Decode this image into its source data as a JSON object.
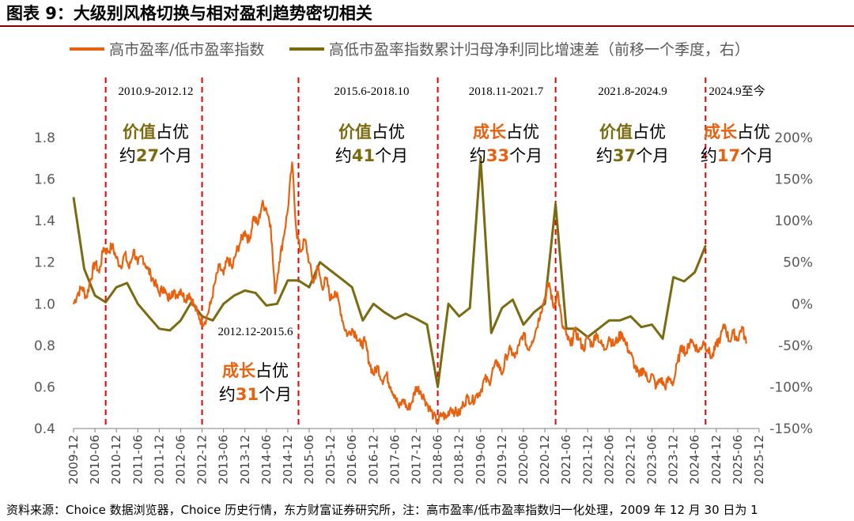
{
  "figure": {
    "title": "图表 9：大级别风格切换与相对盈利趋势密切相关",
    "source": "资料来源：Choice 数据浏览器，Choice 历史行情，东方财富证券研究所，注：高市盈率/低市盈率指数归一化处理，2009 年 12 月 30 日为 1"
  },
  "colors": {
    "orange": "#E8610F",
    "olive": "#7A6A10",
    "red_dash": "#E00000",
    "grid": "#BFBFBF"
  },
  "chart_data": {
    "type": "line",
    "legend": [
      {
        "name": "高市盈率/低市盈率指数",
        "color": "#E8610F"
      },
      {
        "name": "高低市盈率指数累计归母净利同比增速差（前移一个季度，右）",
        "color": "#7A6A10"
      }
    ],
    "x_tick_labels": [
      "2009-12",
      "2010-06",
      "2010-12",
      "2011-06",
      "2011-12",
      "2012-06",
      "2012-12",
      "2013-06",
      "2013-12",
      "2014-06",
      "2014-12",
      "2015-06",
      "2015-12",
      "2016-06",
      "2016-12",
      "2017-06",
      "2017-12",
      "2018-06",
      "2018-12",
      "2019-06",
      "2019-12",
      "2020-06",
      "2020-12",
      "2021-06",
      "2021-12",
      "2022-06",
      "2022-12",
      "2023-06",
      "2023-12",
      "2024-06",
      "2024-12",
      "2025-06",
      "2025-12"
    ],
    "y_left": {
      "min": 0.4,
      "max": 1.8,
      "ticks": [
        "0.4",
        "0.6",
        "0.8",
        "1.0",
        "1.2",
        "1.4",
        "1.6",
        "1.8"
      ]
    },
    "y_right": {
      "min": -150,
      "max": 200,
      "unit": "%",
      "ticks": [
        "-150%",
        "-100%",
        "-50%",
        "0%",
        "50%",
        "100%",
        "150%",
        "200%"
      ]
    },
    "series": [
      {
        "name": "高市盈率/低市盈率指数",
        "axis": "left",
        "points": [
          [
            0.0,
            1.0
          ],
          [
            0.2,
            1.05
          ],
          [
            0.4,
            1.08
          ],
          [
            0.6,
            1.03
          ],
          [
            0.8,
            1.12
          ],
          [
            1.0,
            1.2
          ],
          [
            1.2,
            1.15
          ],
          [
            1.4,
            1.27
          ],
          [
            1.6,
            1.25
          ],
          [
            1.8,
            1.28
          ],
          [
            2.0,
            1.22
          ],
          [
            2.2,
            1.18
          ],
          [
            2.4,
            1.24
          ],
          [
            2.6,
            1.17
          ],
          [
            2.8,
            1.26
          ],
          [
            3.0,
            1.19
          ],
          [
            3.2,
            1.23
          ],
          [
            3.4,
            1.18
          ],
          [
            3.6,
            1.14
          ],
          [
            3.8,
            1.1
          ],
          [
            4.0,
            1.05
          ],
          [
            4.2,
            1.08
          ],
          [
            4.4,
            1.02
          ],
          [
            4.6,
            1.06
          ],
          [
            4.8,
            1.04
          ],
          [
            5.0,
            1.07
          ],
          [
            5.2,
            1.02
          ],
          [
            5.4,
            1.05
          ],
          [
            5.6,
            1.0
          ],
          [
            5.8,
            0.95
          ],
          [
            6.0,
            0.91
          ],
          [
            6.2,
            0.93
          ],
          [
            6.4,
            1.0
          ],
          [
            6.6,
            1.1
          ],
          [
            6.8,
            1.18
          ],
          [
            7.0,
            1.14
          ],
          [
            7.2,
            1.22
          ],
          [
            7.4,
            1.17
          ],
          [
            7.6,
            1.25
          ],
          [
            7.8,
            1.3
          ],
          [
            8.0,
            1.35
          ],
          [
            8.2,
            1.3
          ],
          [
            8.4,
            1.42
          ],
          [
            8.6,
            1.38
          ],
          [
            8.8,
            1.48
          ],
          [
            9.0,
            1.46
          ],
          [
            9.2,
            1.38
          ],
          [
            9.4,
            1.05
          ],
          [
            9.6,
            1.2
          ],
          [
            9.8,
            1.32
          ],
          [
            10.0,
            1.45
          ],
          [
            10.2,
            1.68
          ],
          [
            10.4,
            1.35
          ],
          [
            10.6,
            1.25
          ],
          [
            10.8,
            1.31
          ],
          [
            11.0,
            1.2
          ],
          [
            11.2,
            1.1
          ],
          [
            11.4,
            1.18
          ],
          [
            11.6,
            1.08
          ],
          [
            11.8,
            1.12
          ],
          [
            12.0,
            1.02
          ],
          [
            12.2,
            1.06
          ],
          [
            12.4,
            1.0
          ],
          [
            12.6,
            0.9
          ],
          [
            12.8,
            0.85
          ],
          [
            13.0,
            0.88
          ],
          [
            13.2,
            0.85
          ],
          [
            13.4,
            0.8
          ],
          [
            13.6,
            0.82
          ],
          [
            13.8,
            0.72
          ],
          [
            14.0,
            0.66
          ],
          [
            14.2,
            0.7
          ],
          [
            14.4,
            0.63
          ],
          [
            14.6,
            0.66
          ],
          [
            14.8,
            0.6
          ],
          [
            15.0,
            0.56
          ],
          [
            15.2,
            0.5
          ],
          [
            15.4,
            0.54
          ],
          [
            15.6,
            0.49
          ],
          [
            15.8,
            0.53
          ],
          [
            16.0,
            0.6
          ],
          [
            16.2,
            0.58
          ],
          [
            16.4,
            0.54
          ],
          [
            16.6,
            0.5
          ],
          [
            16.8,
            0.46
          ],
          [
            17.0,
            0.43
          ],
          [
            17.2,
            0.47
          ],
          [
            17.4,
            0.45
          ],
          [
            17.6,
            0.5
          ],
          [
            17.8,
            0.48
          ],
          [
            18.0,
            0.47
          ],
          [
            18.2,
            0.52
          ],
          [
            18.4,
            0.55
          ],
          [
            18.6,
            0.53
          ],
          [
            18.8,
            0.56
          ],
          [
            19.0,
            0.58
          ],
          [
            19.2,
            0.64
          ],
          [
            19.4,
            0.62
          ],
          [
            19.6,
            0.69
          ],
          [
            19.8,
            0.72
          ],
          [
            20.0,
            0.66
          ],
          [
            20.2,
            0.75
          ],
          [
            20.4,
            0.78
          ],
          [
            20.6,
            0.74
          ],
          [
            20.8,
            0.8
          ],
          [
            21.0,
            0.86
          ],
          [
            21.2,
            0.78
          ],
          [
            21.4,
            0.82
          ],
          [
            21.6,
            0.88
          ],
          [
            21.8,
            0.96
          ],
          [
            22.0,
            1.03
          ],
          [
            22.2,
            1.1
          ],
          [
            22.4,
            0.98
          ],
          [
            22.6,
            1.06
          ],
          [
            22.8,
            0.9
          ],
          [
            23.0,
            0.85
          ],
          [
            23.2,
            0.8
          ],
          [
            23.4,
            0.87
          ],
          [
            23.6,
            0.83
          ],
          [
            23.8,
            0.78
          ],
          [
            24.0,
            0.84
          ],
          [
            24.2,
            0.8
          ],
          [
            24.4,
            0.86
          ],
          [
            24.6,
            0.81
          ],
          [
            24.8,
            0.78
          ],
          [
            25.0,
            0.84
          ],
          [
            25.2,
            0.8
          ],
          [
            25.4,
            0.83
          ],
          [
            25.6,
            0.86
          ],
          [
            25.8,
            0.8
          ],
          [
            26.0,
            0.76
          ],
          [
            26.2,
            0.7
          ],
          [
            26.4,
            0.65
          ],
          [
            26.6,
            0.69
          ],
          [
            26.8,
            0.63
          ],
          [
            27.0,
            0.66
          ],
          [
            27.2,
            0.6
          ],
          [
            27.4,
            0.64
          ],
          [
            27.6,
            0.6
          ],
          [
            27.8,
            0.64
          ],
          [
            28.0,
            0.62
          ],
          [
            28.2,
            0.72
          ],
          [
            28.4,
            0.8
          ],
          [
            28.6,
            0.76
          ],
          [
            28.8,
            0.83
          ],
          [
            29.0,
            0.8
          ],
          [
            29.2,
            0.77
          ],
          [
            29.4,
            0.82
          ],
          [
            29.6,
            0.78
          ],
          [
            29.8,
            0.74
          ],
          [
            30.0,
            0.8
          ],
          [
            30.2,
            0.84
          ],
          [
            30.4,
            0.9
          ],
          [
            30.6,
            0.82
          ],
          [
            30.8,
            0.86
          ],
          [
            31.0,
            0.83
          ],
          [
            31.2,
            0.89
          ],
          [
            31.4,
            0.81
          ]
        ]
      },
      {
        "name": "高低市盈率指数累计归母净利同比增速差（前移一个季度，右）",
        "axis": "right",
        "points": [
          [
            0.0,
            128
          ],
          [
            0.5,
            42
          ],
          [
            1.0,
            10
          ],
          [
            1.5,
            2
          ],
          [
            2.0,
            20
          ],
          [
            2.5,
            25
          ],
          [
            3.0,
            0
          ],
          [
            3.5,
            -15
          ],
          [
            4.0,
            -30
          ],
          [
            4.5,
            -32
          ],
          [
            5.0,
            -20
          ],
          [
            5.5,
            2
          ],
          [
            6.0,
            -15
          ],
          [
            6.5,
            -20
          ],
          [
            7.0,
            0
          ],
          [
            7.5,
            10
          ],
          [
            8.0,
            16
          ],
          [
            8.5,
            13
          ],
          [
            9.0,
            -2
          ],
          [
            9.5,
            0
          ],
          [
            10.0,
            28
          ],
          [
            10.5,
            28
          ],
          [
            11.0,
            20
          ],
          [
            11.5,
            50
          ],
          [
            12.0,
            40
          ],
          [
            12.5,
            30
          ],
          [
            13.0,
            20
          ],
          [
            13.5,
            -20
          ],
          [
            14.0,
            0
          ],
          [
            14.5,
            -10
          ],
          [
            15.0,
            -18
          ],
          [
            15.5,
            -12
          ],
          [
            16.0,
            -18
          ],
          [
            16.5,
            -25
          ],
          [
            17.0,
            -100
          ],
          [
            17.5,
            0
          ],
          [
            18.0,
            -15
          ],
          [
            18.5,
            -5
          ],
          [
            19.0,
            175
          ],
          [
            19.5,
            -35
          ],
          [
            20.0,
            -5
          ],
          [
            20.5,
            5
          ],
          [
            21.0,
            -25
          ],
          [
            21.5,
            -10
          ],
          [
            22.0,
            0
          ],
          [
            22.5,
            120
          ],
          [
            23.0,
            -30
          ],
          [
            23.5,
            -30
          ],
          [
            24.0,
            -40
          ],
          [
            24.5,
            -30
          ],
          [
            25.0,
            -20
          ],
          [
            25.5,
            -20
          ],
          [
            26.0,
            -15
          ],
          [
            26.5,
            -28
          ],
          [
            27.0,
            -25
          ],
          [
            27.5,
            -42
          ],
          [
            28.0,
            32
          ],
          [
            28.5,
            27
          ],
          [
            29.0,
            38
          ],
          [
            29.5,
            70
          ]
        ]
      }
    ],
    "periods": [
      {
        "label": "2010.9-2012.12",
        "style_label": "价值",
        "style_color": "#7A6A10",
        "verb": "占优",
        "duration_prefix": "约",
        "months": "27",
        "duration_suffix": "个月"
      },
      {
        "label": "2012.12-2015.6",
        "style_label": "成长",
        "style_color": "#E8610F",
        "verb": "占优",
        "duration_prefix": "约",
        "months": "31",
        "duration_suffix": "个月"
      },
      {
        "label": "2015.6-2018.10",
        "style_label": "价值",
        "style_color": "#7A6A10",
        "verb": "占优",
        "duration_prefix": "约",
        "months": "41",
        "duration_suffix": "个月"
      },
      {
        "label": "2018.11-2021.7",
        "style_label": "成长",
        "style_color": "#E8610F",
        "verb": "占优",
        "duration_prefix": "约",
        "months": "33",
        "duration_suffix": "个月"
      },
      {
        "label": "2021.8-2024.9",
        "style_label": "价值",
        "style_color": "#7A6A10",
        "verb": "占优",
        "duration_prefix": "约",
        "months": "37",
        "duration_suffix": "个月"
      },
      {
        "label": "2024.9至今",
        "style_label": "成长",
        "style_color": "#E8610F",
        "verb": "占优",
        "duration_prefix": "约",
        "months": "17",
        "duration_suffix": "个月"
      }
    ],
    "divider_positions_in_tick_units": [
      1.5,
      6.0,
      10.5,
      17.0,
      22.5,
      29.5
    ]
  }
}
